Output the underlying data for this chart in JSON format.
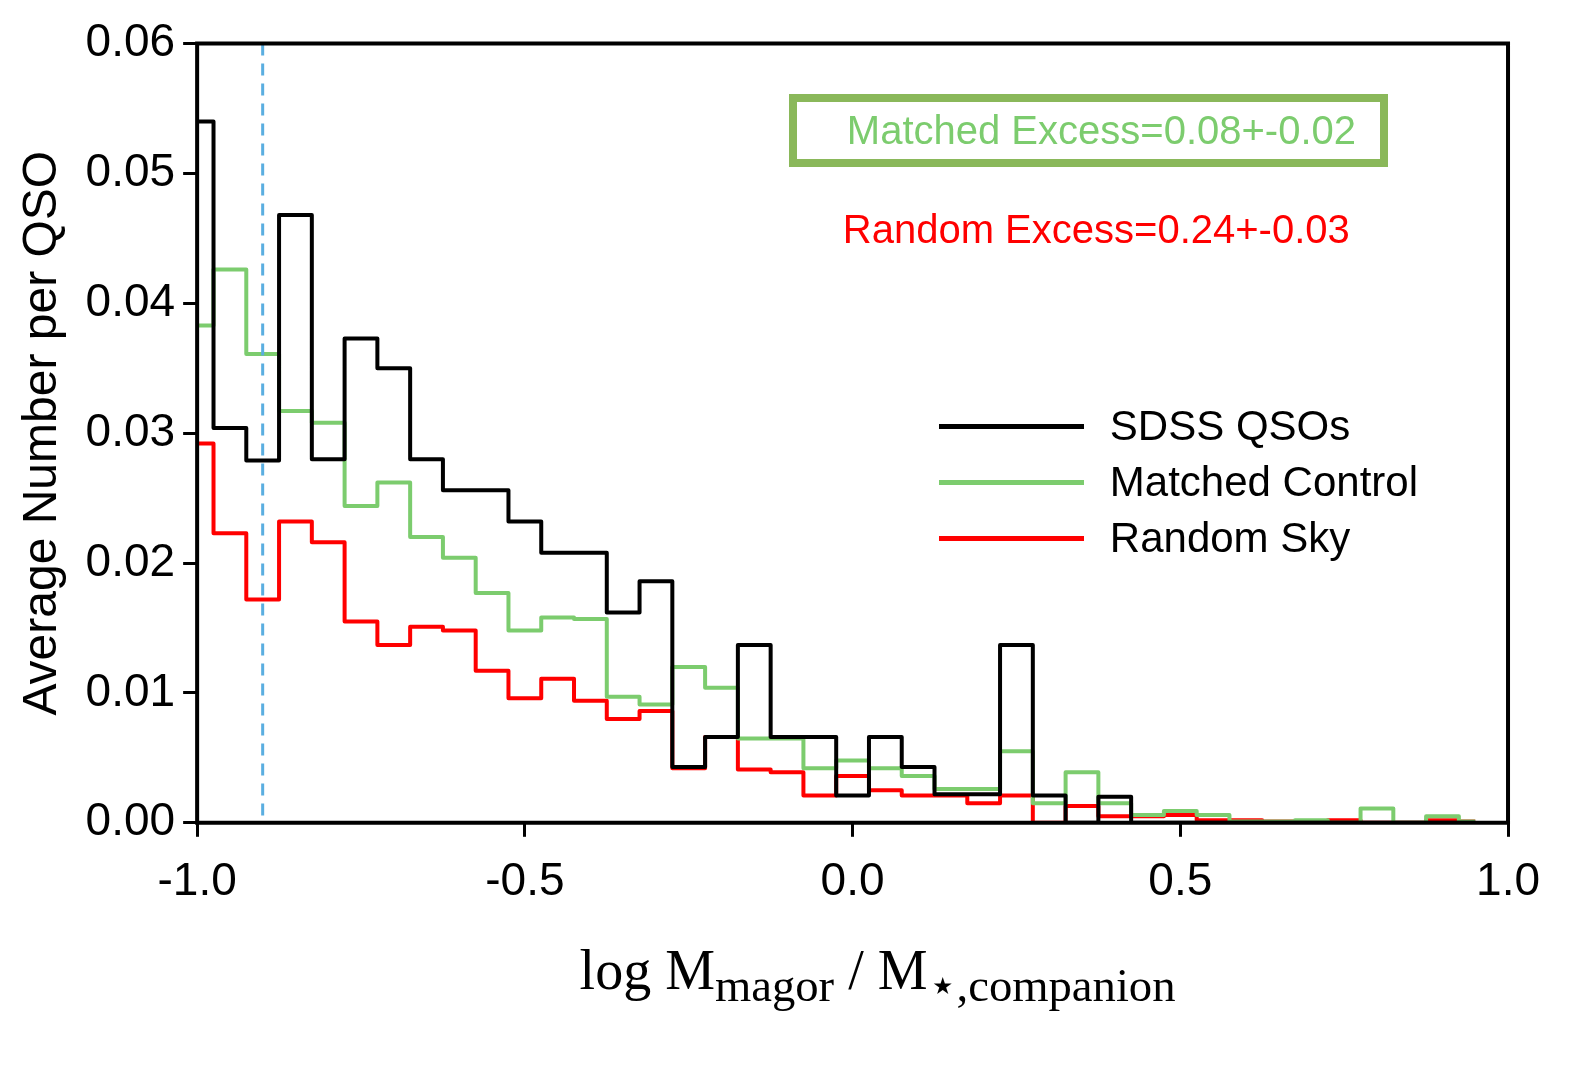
{
  "chart_data": {
    "type": "histogram",
    "ylabel": "Average Number per QSO",
    "xlabel": "log M$_{magor}$ / M$_{⋆,companion}$",
    "bins": [
      -1.0,
      -0.975,
      -0.925,
      -0.875,
      -0.825,
      -0.775,
      -0.725,
      -0.675,
      -0.625,
      -0.575,
      -0.525,
      -0.475,
      -0.425,
      -0.375,
      -0.325,
      -0.275,
      -0.225,
      -0.175,
      -0.125,
      -0.075,
      -0.025,
      0.025,
      0.075,
      0.125,
      0.175,
      0.225,
      0.275,
      0.325,
      0.375,
      0.425,
      0.475,
      0.525,
      0.575,
      0.625,
      0.675,
      0.725,
      0.775,
      0.825,
      0.875,
      0.925,
      0.95
    ],
    "series": [
      {
        "name": "SDSS QSOs",
        "color": "#000000",
        "values": [
          0.054,
          0.0304,
          0.0279,
          0.0468,
          0.028,
          0.0373,
          0.035,
          0.028,
          0.0256,
          0.0256,
          0.0232,
          0.0208,
          0.0208,
          0.0162,
          0.0186,
          0.0043,
          0.0066,
          0.0137,
          0.0066,
          0.0066,
          0.0021,
          0.0066,
          0.0043,
          0.0022,
          0.0022,
          0.0137,
          0.0021,
          0,
          0.002,
          0,
          0,
          0,
          0,
          0,
          0,
          0,
          0,
          0,
          0,
          0
        ]
      },
      {
        "name": "Matched Control",
        "color": "#7ccc6e",
        "values": [
          0.0383,
          0.0426,
          0.0361,
          0.0317,
          0.0308,
          0.0244,
          0.0262,
          0.022,
          0.0204,
          0.0177,
          0.0148,
          0.0158,
          0.0157,
          0.0097,
          0.0091,
          0.012,
          0.0104,
          0.0065,
          0.0065,
          0.0042,
          0.0048,
          0.0042,
          0.0036,
          0.0026,
          0.0026,
          0.0055,
          0.0015,
          0.0039,
          0.0015,
          0.0006,
          0.0009,
          0.0006,
          0.0001,
          0.0001,
          0.0002,
          0,
          0.0011,
          0,
          0.0005,
          0.0001
        ]
      },
      {
        "name": "Random Sky",
        "color": "#ff0000",
        "values": [
          0.0292,
          0.0223,
          0.0172,
          0.0232,
          0.0216,
          0.0155,
          0.0137,
          0.0151,
          0.0148,
          0.0117,
          0.0096,
          0.0111,
          0.0094,
          0.008,
          0.0086,
          0.0042,
          0.0066,
          0.0041,
          0.0039,
          0.0021,
          0.0036,
          0.0025,
          0.0021,
          0.0021,
          0.0015,
          0.0021,
          0,
          0.0013,
          0.0005,
          0.0005,
          0.0006,
          0.0002,
          0.0002,
          0.0001,
          0,
          0.0002,
          0,
          0,
          0.0002,
          0.0001
        ]
      }
    ],
    "xlim": [
      -1.0,
      1.0
    ],
    "xticks": [
      {
        "value": -1.0,
        "label": "-1.0"
      },
      {
        "value": -0.5,
        "label": "-0.5"
      },
      {
        "value": 0,
        "label": "0.0"
      },
      {
        "value": 0.5,
        "label": "0.5"
      },
      {
        "value": 1.0,
        "label": "1.0"
      }
    ],
    "ylim": [
      0,
      0.06
    ],
    "yticks": [
      {
        "value": 0,
        "label": "0.00"
      },
      {
        "value": 0.01,
        "label": "0.01"
      },
      {
        "value": 0.02,
        "label": "0.02"
      },
      {
        "value": 0.03,
        "label": "0.03"
      },
      {
        "value": 0.04,
        "label": "0.04"
      },
      {
        "value": 0.05,
        "label": "0.05"
      },
      {
        "value": 0.06,
        "label": "0.06"
      }
    ],
    "ref_lines": [
      {
        "axis": "x",
        "value": -0.9,
        "color": "#5aaee0",
        "line_style": "dashed"
      }
    ],
    "annotations": [
      "Matched Excess=0.08+-0.02",
      "Random Excess=0.24+-0.03"
    ],
    "legend": "right",
    "grid": false
  }
}
